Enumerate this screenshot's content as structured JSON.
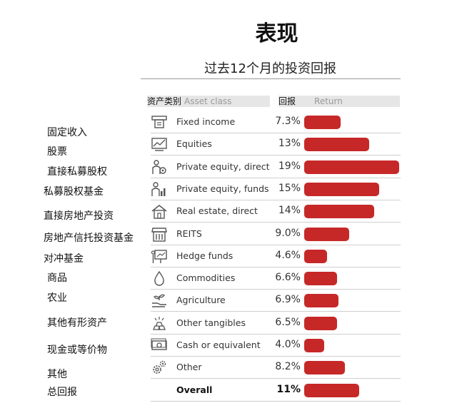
{
  "title": "表现",
  "chart_data": {
    "type": "bar",
    "orientation": "horizontal",
    "title": "过去12个月的投资回报",
    "header": {
      "asset_zh": "资产类别",
      "asset_en": "Asset class",
      "return_zh": "回报",
      "return_en": "Return"
    },
    "xlim": [
      0,
      19
    ],
    "unit": "%",
    "rows": [
      {
        "zh": "固定收入",
        "en": "Fixed income",
        "value": 7.3,
        "label": "7.3%",
        "icon": "atm-icon"
      },
      {
        "zh": "股票",
        "en": "Equities",
        "value": 13,
        "label": "13%",
        "icon": "line-chart-icon"
      },
      {
        "zh": "直接私募股权",
        "en": "Private equity, direct",
        "value": 19,
        "label": "19%",
        "icon": "person-gear-icon"
      },
      {
        "zh": "私募股权基金",
        "en": "Private equity, funds",
        "value": 15,
        "label": "15%",
        "icon": "person-bars-icon"
      },
      {
        "zh": "直接房地产投资",
        "en": "Real estate, direct",
        "value": 14,
        "label": "14%",
        "icon": "house-icon"
      },
      {
        "zh": "房地产信托投资基金",
        "en": "REITS",
        "value": 9.0,
        "label": "9.0%",
        "icon": "storefront-icon"
      },
      {
        "zh": "对冲基金",
        "en": "Hedge funds",
        "value": 4.6,
        "label": "4.6%",
        "icon": "presentation-board-icon"
      },
      {
        "zh": "商品",
        "en": "Commodities",
        "value": 6.6,
        "label": "6.6%",
        "icon": "oil-drop-icon"
      },
      {
        "zh": "农业",
        "en": "Agriculture",
        "value": 6.9,
        "label": "6.9%",
        "icon": "sprout-hand-icon"
      },
      {
        "zh": "其他有形资产",
        "en": "Other tangibles",
        "value": 6.5,
        "label": "6.5%",
        "icon": "gold-bars-icon"
      },
      {
        "zh": "现金或等价物",
        "en": "Cash or equivalent",
        "value": 4.0,
        "label": "4.0%",
        "icon": "banknote-icon"
      },
      {
        "zh": "其他",
        "en": "Other",
        "value": 8.2,
        "label": "8.2%",
        "icon": "gears-icon"
      },
      {
        "zh": "总回报",
        "en": "Overall",
        "value": 11,
        "label": "11%",
        "icon": ""
      }
    ]
  }
}
